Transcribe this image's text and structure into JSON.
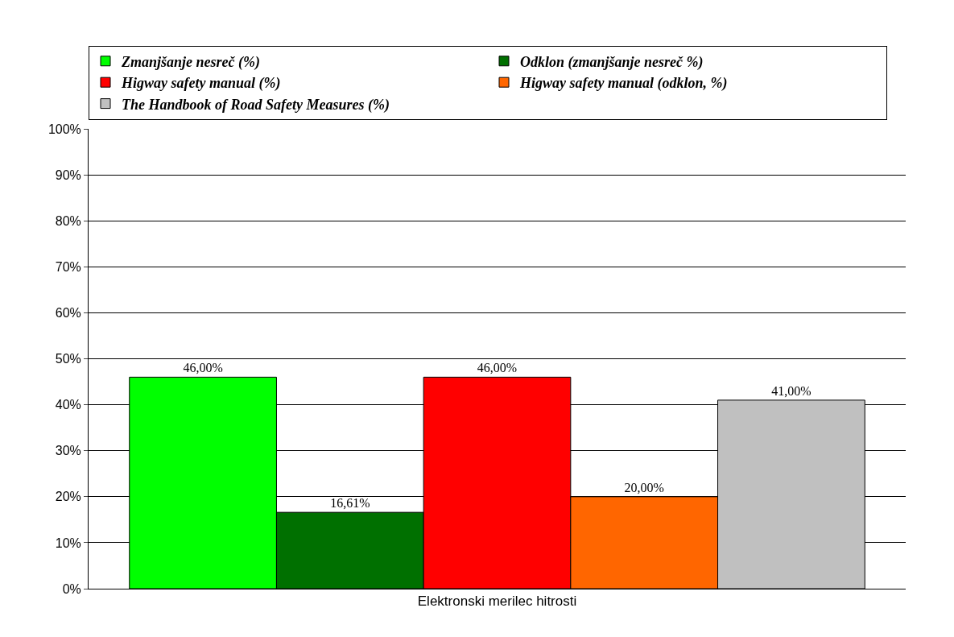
{
  "chart_data": {
    "type": "bar",
    "categories": [
      "Elektronski merilec hitrosti"
    ],
    "series": [
      {
        "name": "Zmanjšanje nesreč (%)",
        "color": "#00ff00",
        "values": [
          46
        ],
        "value_labels": [
          "46,00%"
        ]
      },
      {
        "name": "Odklon (zmanjšanje nesreč %)",
        "color": "#007000",
        "values": [
          16.61
        ],
        "value_labels": [
          "16,61%"
        ]
      },
      {
        "name": "Higway safety manual (%)",
        "color": "#ff0000",
        "values": [
          46
        ],
        "value_labels": [
          "46,00%"
        ]
      },
      {
        "name": "Higway safety manual (odklon, %)",
        "color": "#ff6600",
        "values": [
          20
        ],
        "value_labels": [
          "20,00%"
        ]
      },
      {
        "name": "The Handbook of Road Safety Measures (%)",
        "color": "#c0c0c0",
        "values": [
          41
        ],
        "value_labels": [
          "41,00%"
        ]
      }
    ],
    "ylim": [
      0,
      100
    ],
    "yticks": [
      {
        "value": 0,
        "label": "0%"
      },
      {
        "value": 10,
        "label": "10%"
      },
      {
        "value": 20,
        "label": "20%"
      },
      {
        "value": 30,
        "label": "30%"
      },
      {
        "value": 40,
        "label": "40%"
      },
      {
        "value": 50,
        "label": "50%"
      },
      {
        "value": 60,
        "label": "60%"
      },
      {
        "value": 70,
        "label": "70%"
      },
      {
        "value": 80,
        "label": "80%"
      },
      {
        "value": 90,
        "label": "90%"
      },
      {
        "value": 100,
        "label": "100%"
      }
    ],
    "grid": "y",
    "legend": "top"
  }
}
